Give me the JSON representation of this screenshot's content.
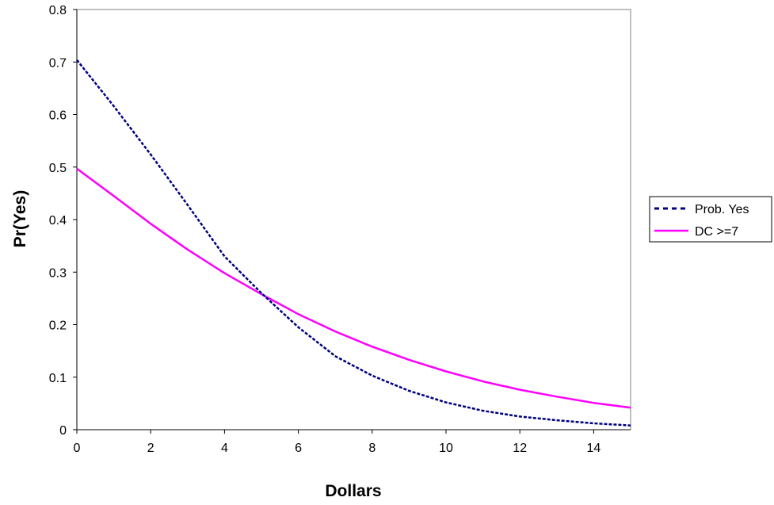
{
  "chart_data": {
    "type": "line",
    "title": "",
    "xlabel": "Dollars",
    "ylabel": "Pr(Yes)",
    "xlim": [
      0,
      15
    ],
    "ylim": [
      0,
      0.8
    ],
    "x_ticks": [
      "0",
      "2",
      "4",
      "6",
      "8",
      "10",
      "12",
      "14"
    ],
    "y_ticks": [
      "0",
      "0.1",
      "0.2",
      "0.3",
      "0.4",
      "0.5",
      "0.6",
      "0.7",
      "0.8"
    ],
    "grid": false,
    "legend_position": "right",
    "x": [
      0,
      1,
      2,
      3,
      4,
      5,
      6,
      7,
      8,
      9,
      10,
      11,
      12,
      13,
      14,
      15
    ],
    "series": [
      {
        "name": "Prob. Yes",
        "color": "#000080",
        "style": "dashed",
        "values": [
          0.704,
          0.616,
          0.524,
          0.428,
          0.33,
          0.26,
          0.195,
          0.14,
          0.103,
          0.074,
          0.052,
          0.036,
          0.025,
          0.018,
          0.012,
          0.008
        ]
      },
      {
        "name": "DC >=7",
        "color": "#ff00ff",
        "style": "solid",
        "values": [
          0.497,
          0.445,
          0.392,
          0.343,
          0.298,
          0.258,
          0.22,
          0.187,
          0.158,
          0.133,
          0.111,
          0.092,
          0.076,
          0.063,
          0.051,
          0.042
        ]
      }
    ]
  }
}
